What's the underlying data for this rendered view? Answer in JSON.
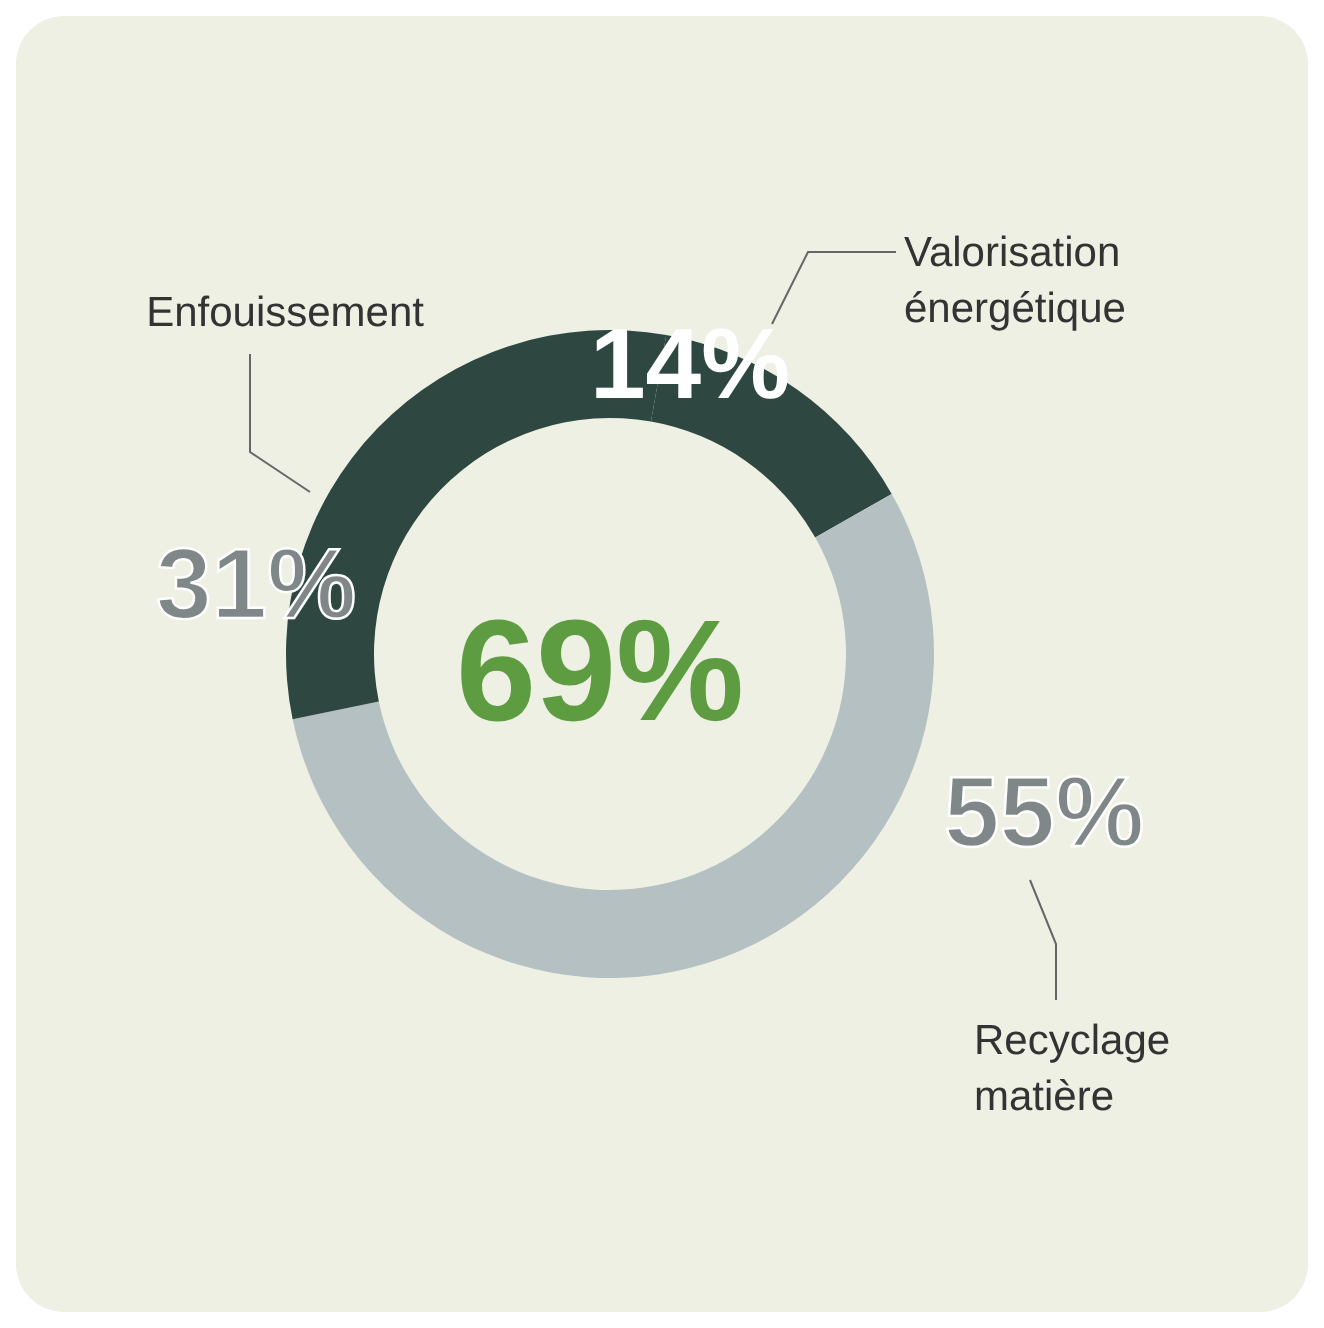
{
  "chart_data": {
    "type": "donut",
    "categories": [
      "Valorisation énergétique",
      "Recyclage matière",
      "Enfouissement"
    ],
    "values": [
      14,
      55,
      31
    ],
    "value_labels": [
      "14%",
      "55%",
      "31%"
    ],
    "colors": [
      "#2f4741",
      "#b5c0c3",
      "#2f4741"
    ],
    "annotations": [
      "69%"
    ]
  }
}
